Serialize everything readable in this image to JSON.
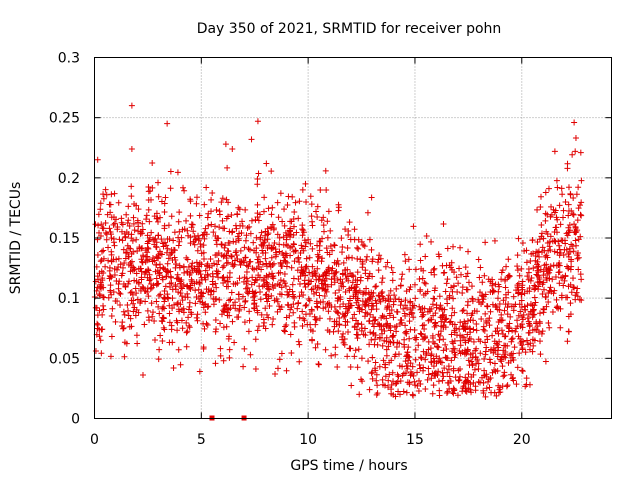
{
  "chart_data": {
    "type": "scatter",
    "title": "Day 350 of 2021, SRMTID for receiver pohn",
    "xlabel": "GPS time / hours",
    "ylabel": "SRMTID / TECUs",
    "xlim": [
      0,
      24.2
    ],
    "ylim": [
      0,
      0.3
    ],
    "xticks": [
      0,
      5,
      10,
      15,
      20
    ],
    "xtick_labels": [
      "0",
      "5",
      "10",
      "15",
      "20"
    ],
    "yticks": [
      0,
      0.05,
      0.1,
      0.15,
      0.2,
      0.25,
      0.3
    ],
    "ytick_labels": [
      "0",
      "0.05",
      "0.1",
      "0.15",
      "0.2",
      "0.25",
      "0.3"
    ],
    "grid": true,
    "marker": "+",
    "series_name": "SRMTID",
    "marker_color": "#e00000",
    "grid_color": "#a0a0a0",
    "point_count": 2600,
    "x_range_hours": [
      0,
      22.8
    ],
    "trend": [
      {
        "x": 0.0,
        "y": 0.12
      },
      {
        "x": 1.0,
        "y": 0.125
      },
      {
        "x": 2.0,
        "y": 0.13
      },
      {
        "x": 3.0,
        "y": 0.125
      },
      {
        "x": 4.0,
        "y": 0.12
      },
      {
        "x": 5.0,
        "y": 0.125
      },
      {
        "x": 6.0,
        "y": 0.12
      },
      {
        "x": 7.0,
        "y": 0.12
      },
      {
        "x": 8.0,
        "y": 0.13
      },
      {
        "x": 9.0,
        "y": 0.125
      },
      {
        "x": 10.0,
        "y": 0.12
      },
      {
        "x": 11.0,
        "y": 0.115
      },
      {
        "x": 12.0,
        "y": 0.105
      },
      {
        "x": 13.0,
        "y": 0.09
      },
      {
        "x": 14.0,
        "y": 0.065
      },
      {
        "x": 15.0,
        "y": 0.07
      },
      {
        "x": 16.0,
        "y": 0.075
      },
      {
        "x": 17.0,
        "y": 0.07
      },
      {
        "x": 18.0,
        "y": 0.065
      },
      {
        "x": 19.0,
        "y": 0.07
      },
      {
        "x": 20.0,
        "y": 0.085
      },
      {
        "x": 21.0,
        "y": 0.12
      },
      {
        "x": 22.0,
        "y": 0.14
      },
      {
        "x": 22.8,
        "y": 0.15
      }
    ],
    "spread": 0.033,
    "notable_points": [
      {
        "x": 1.75,
        "y": 0.26
      },
      {
        "x": 3.4,
        "y": 0.245
      },
      {
        "x": 7.65,
        "y": 0.247
      },
      {
        "x": 22.45,
        "y": 0.246
      },
      {
        "x": 7.35,
        "y": 0.232
      },
      {
        "x": 6.15,
        "y": 0.228
      },
      {
        "x": 6.45,
        "y": 0.224
      },
      {
        "x": 1.75,
        "y": 0.224
      },
      {
        "x": 21.55,
        "y": 0.222
      },
      {
        "x": 22.5,
        "y": 0.222
      },
      {
        "x": 0.15,
        "y": 0.215
      },
      {
        "x": 8.45,
        "y": 0.037
      },
      {
        "x": 14.3,
        "y": 0.02
      },
      {
        "x": 17.5,
        "y": 0.025
      },
      {
        "x": 18.3,
        "y": 0.018
      },
      {
        "x": 3.7,
        "y": 0.042
      }
    ],
    "zero_markers": [
      {
        "x": 5.5,
        "y": 0
      },
      {
        "x": 7.0,
        "y": 0
      }
    ]
  }
}
